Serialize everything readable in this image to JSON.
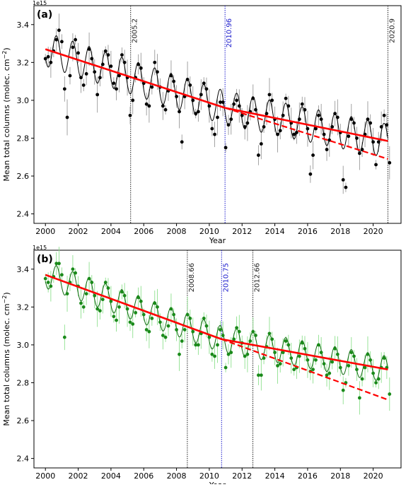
{
  "chart_data": [
    {
      "type": "scatter",
      "panel_label": "(a)",
      "exponent_label": "1e15",
      "xlabel": "Year",
      "ylabel": "Mean total columns (molec. cm",
      "ylabel_sup": "−2",
      "ylabel_close": ")",
      "xlim": [
        1999.3,
        2021.7
      ],
      "ylim": [
        2.35,
        3.5
      ],
      "xticks": [
        2000,
        2002,
        2004,
        2006,
        2008,
        2010,
        2012,
        2014,
        2016,
        2018,
        2020
      ],
      "yticks": [
        2.4,
        2.6,
        2.8,
        3.0,
        3.2,
        3.4
      ],
      "ytick_labels": [
        "2.4",
        "2.6",
        "2.8",
        "3.0",
        "3.2",
        "3.4"
      ],
      "colors": {
        "points": "#000000",
        "errorbars": "#999999",
        "fit": "#000000",
        "trend": "#ff0000",
        "marker_grey": "#222222",
        "marker_blue": "#1a1acc"
      },
      "vlines": [
        {
          "x": 2005.2,
          "label": "2005.2",
          "color": "#222222"
        },
        {
          "x": 2010.96,
          "label": "2010.96",
          "color": "#1a1acc"
        },
        {
          "x": 2020.9,
          "label": "2020.9",
          "color": "#222222"
        }
      ],
      "trend": {
        "start": [
          2000.0,
          3.27
        ],
        "break": [
          2010.96,
          2.96
        ],
        "end": [
          2020.9,
          2.785
        ],
        "extended_end": [
          2020.9,
          2.69
        ]
      },
      "seasonal_amplitude": 0.09,
      "points": [
        {
          "x": 2000.0,
          "y": 3.22
        },
        {
          "x": 2000.17,
          "y": 3.23
        },
        {
          "x": 2000.33,
          "y": 3.2
        },
        {
          "x": 2000.5,
          "y": 3.26
        },
        {
          "x": 2000.67,
          "y": 3.32
        },
        {
          "x": 2000.83,
          "y": 3.37
        },
        {
          "x": 2001.0,
          "y": 3.31
        },
        {
          "x": 2001.17,
          "y": 3.06
        },
        {
          "x": 2001.33,
          "y": 2.91
        },
        {
          "x": 2001.5,
          "y": 3.13
        },
        {
          "x": 2001.67,
          "y": 3.28
        },
        {
          "x": 2001.83,
          "y": 3.32
        },
        {
          "x": 2002.0,
          "y": 3.25
        },
        {
          "x": 2002.17,
          "y": 3.12
        },
        {
          "x": 2002.33,
          "y": 3.08
        },
        {
          "x": 2002.5,
          "y": 3.14
        },
        {
          "x": 2002.67,
          "y": 3.27
        },
        {
          "x": 2002.83,
          "y": 3.22
        },
        {
          "x": 2003.0,
          "y": 3.15
        },
        {
          "x": 2003.17,
          "y": 3.03
        },
        {
          "x": 2003.33,
          "y": 3.12
        },
        {
          "x": 2003.5,
          "y": 3.19
        },
        {
          "x": 2003.67,
          "y": 3.26
        },
        {
          "x": 2003.83,
          "y": 3.24
        },
        {
          "x": 2004.0,
          "y": 3.18
        },
        {
          "x": 2004.17,
          "y": 3.09
        },
        {
          "x": 2004.33,
          "y": 3.06
        },
        {
          "x": 2004.5,
          "y": 3.13
        },
        {
          "x": 2004.67,
          "y": 3.24
        },
        {
          "x": 2004.83,
          "y": 3.2
        },
        {
          "x": 2005.0,
          "y": 3.12
        },
        {
          "x": 2005.17,
          "y": 2.92
        },
        {
          "x": 2005.33,
          "y": 3.0
        },
        {
          "x": 2005.5,
          "y": 3.12
        },
        {
          "x": 2005.67,
          "y": 3.19
        },
        {
          "x": 2005.83,
          "y": 3.17
        },
        {
          "x": 2006.0,
          "y": 3.09
        },
        {
          "x": 2006.17,
          "y": 2.98
        },
        {
          "x": 2006.33,
          "y": 2.97
        },
        {
          "x": 2006.5,
          "y": 3.07
        },
        {
          "x": 2006.67,
          "y": 3.2
        },
        {
          "x": 2006.83,
          "y": 3.15
        },
        {
          "x": 2007.0,
          "y": 3.07
        },
        {
          "x": 2007.17,
          "y": 2.97
        },
        {
          "x": 2007.33,
          "y": 2.95
        },
        {
          "x": 2007.5,
          "y": 3.05
        },
        {
          "x": 2007.67,
          "y": 3.13
        },
        {
          "x": 2007.83,
          "y": 3.1
        },
        {
          "x": 2008.0,
          "y": 3.02
        },
        {
          "x": 2008.17,
          "y": 2.94
        },
        {
          "x": 2008.33,
          "y": 2.78
        },
        {
          "x": 2008.5,
          "y": 3.02
        },
        {
          "x": 2008.67,
          "y": 3.11
        },
        {
          "x": 2008.83,
          "y": 3.08
        },
        {
          "x": 2009.0,
          "y": 3.0
        },
        {
          "x": 2009.17,
          "y": 2.93
        },
        {
          "x": 2009.33,
          "y": 2.94
        },
        {
          "x": 2009.5,
          "y": 3.03
        },
        {
          "x": 2009.67,
          "y": 3.09
        },
        {
          "x": 2009.83,
          "y": 3.06
        },
        {
          "x": 2010.0,
          "y": 2.97
        },
        {
          "x": 2010.17,
          "y": 2.85
        },
        {
          "x": 2010.33,
          "y": 2.82
        },
        {
          "x": 2010.5,
          "y": 2.91
        },
        {
          "x": 2010.67,
          "y": 2.99
        },
        {
          "x": 2010.83,
          "y": 2.99
        },
        {
          "x": 2011.0,
          "y": 2.75
        },
        {
          "x": 2011.17,
          "y": 2.87
        },
        {
          "x": 2011.33,
          "y": 2.9
        },
        {
          "x": 2011.5,
          "y": 2.98
        },
        {
          "x": 2011.67,
          "y": 3.0
        },
        {
          "x": 2011.83,
          "y": 2.97
        },
        {
          "x": 2012.0,
          "y": 2.92
        },
        {
          "x": 2012.17,
          "y": 2.86
        },
        {
          "x": 2012.33,
          "y": 2.88
        },
        {
          "x": 2012.5,
          "y": 2.94
        },
        {
          "x": 2012.67,
          "y": 3.01
        },
        {
          "x": 2012.83,
          "y": 2.95
        },
        {
          "x": 2013.0,
          "y": 2.71
        },
        {
          "x": 2013.17,
          "y": 2.77
        },
        {
          "x": 2013.33,
          "y": 2.86
        },
        {
          "x": 2013.5,
          "y": 2.93
        },
        {
          "x": 2013.67,
          "y": 3.03
        },
        {
          "x": 2013.83,
          "y": 3.0
        },
        {
          "x": 2014.0,
          "y": 2.9
        },
        {
          "x": 2014.17,
          "y": 2.82
        },
        {
          "x": 2014.33,
          "y": 2.84
        },
        {
          "x": 2014.5,
          "y": 2.92
        },
        {
          "x": 2014.67,
          "y": 3.01
        },
        {
          "x": 2014.83,
          "y": 2.97
        },
        {
          "x": 2015.0,
          "y": 2.88
        },
        {
          "x": 2015.17,
          "y": 2.82
        },
        {
          "x": 2015.33,
          "y": 2.83
        },
        {
          "x": 2015.5,
          "y": 2.9
        },
        {
          "x": 2015.67,
          "y": 2.98
        },
        {
          "x": 2015.83,
          "y": 2.95
        },
        {
          "x": 2016.0,
          "y": 2.85
        },
        {
          "x": 2016.17,
          "y": 2.61
        },
        {
          "x": 2016.33,
          "y": 2.71
        },
        {
          "x": 2016.5,
          "y": 2.85
        },
        {
          "x": 2016.67,
          "y": 2.92
        },
        {
          "x": 2016.83,
          "y": 2.9
        },
        {
          "x": 2017.0,
          "y": 2.82
        },
        {
          "x": 2017.17,
          "y": 2.74
        },
        {
          "x": 2017.33,
          "y": 2.79
        },
        {
          "x": 2017.5,
          "y": 2.86
        },
        {
          "x": 2017.67,
          "y": 2.93
        },
        {
          "x": 2017.83,
          "y": 2.91
        },
        {
          "x": 2018.0,
          "y": 2.83
        },
        {
          "x": 2018.17,
          "y": 2.58
        },
        {
          "x": 2018.33,
          "y": 2.54
        },
        {
          "x": 2018.5,
          "y": 2.81
        },
        {
          "x": 2018.67,
          "y": 2.9
        },
        {
          "x": 2018.83,
          "y": 2.88
        },
        {
          "x": 2019.0,
          "y": 2.8
        },
        {
          "x": 2019.17,
          "y": 2.72
        },
        {
          "x": 2019.33,
          "y": 2.74
        },
        {
          "x": 2019.5,
          "y": 2.82
        },
        {
          "x": 2019.67,
          "y": 2.9
        },
        {
          "x": 2019.83,
          "y": 2.88
        },
        {
          "x": 2020.0,
          "y": 2.78
        },
        {
          "x": 2020.17,
          "y": 2.66
        },
        {
          "x": 2020.33,
          "y": 2.78
        },
        {
          "x": 2020.5,
          "y": 2.86
        },
        {
          "x": 2020.67,
          "y": 2.92
        },
        {
          "x": 2020.83,
          "y": 2.87
        },
        {
          "x": 2021.0,
          "y": 2.67
        }
      ]
    },
    {
      "type": "scatter",
      "panel_label": "(b)",
      "exponent_label": "1e15",
      "xlabel": "Year",
      "ylabel": "Mean total columns (molec. cm",
      "ylabel_sup": "−2",
      "ylabel_close": ")",
      "xlim": [
        1999.3,
        2021.7
      ],
      "ylim": [
        2.35,
        3.5
      ],
      "xticks": [
        2000,
        2002,
        2004,
        2006,
        2008,
        2010,
        2012,
        2014,
        2016,
        2018,
        2020
      ],
      "yticks": [
        2.4,
        2.6,
        2.8,
        3.0,
        3.2,
        3.4
      ],
      "ytick_labels": [
        "2.4",
        "2.6",
        "2.8",
        "3.0",
        "3.2",
        "3.4"
      ],
      "colors": {
        "points": "#1a8a1a",
        "errorbars": "#8ee08e",
        "fit": "#0e6a0e",
        "trend": "#ff0000",
        "marker_grey": "#222222",
        "marker_blue": "#1a1acc"
      },
      "vlines": [
        {
          "x": 2008.66,
          "label": "2008.66",
          "color": "#222222"
        },
        {
          "x": 2010.75,
          "label": "2010.75",
          "color": "#1a1acc"
        },
        {
          "x": 2012.66,
          "label": "2012.66",
          "color": "#222222"
        }
      ],
      "trend": {
        "start": [
          2000.0,
          3.37
        ],
        "break": [
          2010.75,
          3.03
        ],
        "end": [
          2020.9,
          2.87
        ],
        "extended_end": [
          2020.9,
          2.71
        ]
      },
      "seasonal_amplitude": 0.07,
      "points": [
        {
          "x": 2000.0,
          "y": 3.35
        },
        {
          "x": 2000.17,
          "y": 3.33
        },
        {
          "x": 2000.33,
          "y": 3.31
        },
        {
          "x": 2000.5,
          "y": 3.36
        },
        {
          "x": 2000.67,
          "y": 3.43
        },
        {
          "x": 2000.83,
          "y": 3.43
        },
        {
          "x": 2001.0,
          "y": 3.37
        },
        {
          "x": 2001.17,
          "y": 3.04
        },
        {
          "x": 2001.33,
          "y": 3.27
        },
        {
          "x": 2001.5,
          "y": 3.33
        },
        {
          "x": 2001.67,
          "y": 3.4
        },
        {
          "x": 2001.83,
          "y": 3.38
        },
        {
          "x": 2002.0,
          "y": 3.31
        },
        {
          "x": 2002.17,
          "y": 3.22
        },
        {
          "x": 2002.33,
          "y": 3.2
        },
        {
          "x": 2002.5,
          "y": 3.27
        },
        {
          "x": 2002.67,
          "y": 3.35
        },
        {
          "x": 2002.83,
          "y": 3.33
        },
        {
          "x": 2003.0,
          "y": 3.26
        },
        {
          "x": 2003.17,
          "y": 3.19
        },
        {
          "x": 2003.33,
          "y": 3.18
        },
        {
          "x": 2003.5,
          "y": 3.24
        },
        {
          "x": 2003.67,
          "y": 3.33
        },
        {
          "x": 2003.83,
          "y": 3.3
        },
        {
          "x": 2004.0,
          "y": 3.23
        },
        {
          "x": 2004.17,
          "y": 3.15
        },
        {
          "x": 2004.33,
          "y": 3.13
        },
        {
          "x": 2004.5,
          "y": 3.2
        },
        {
          "x": 2004.67,
          "y": 3.28
        },
        {
          "x": 2004.83,
          "y": 3.26
        },
        {
          "x": 2005.0,
          "y": 3.19
        },
        {
          "x": 2005.17,
          "y": 3.12
        },
        {
          "x": 2005.33,
          "y": 3.11
        },
        {
          "x": 2005.5,
          "y": 3.17
        },
        {
          "x": 2005.67,
          "y": 3.25
        },
        {
          "x": 2005.83,
          "y": 3.23
        },
        {
          "x": 2006.0,
          "y": 3.16
        },
        {
          "x": 2006.17,
          "y": 3.08
        },
        {
          "x": 2006.33,
          "y": 3.07
        },
        {
          "x": 2006.5,
          "y": 3.14
        },
        {
          "x": 2006.67,
          "y": 3.22
        },
        {
          "x": 2006.83,
          "y": 3.2
        },
        {
          "x": 2007.0,
          "y": 3.12
        },
        {
          "x": 2007.17,
          "y": 3.05
        },
        {
          "x": 2007.33,
          "y": 3.04
        },
        {
          "x": 2007.5,
          "y": 3.1
        },
        {
          "x": 2007.67,
          "y": 3.19
        },
        {
          "x": 2007.83,
          "y": 3.16
        },
        {
          "x": 2008.0,
          "y": 3.08
        },
        {
          "x": 2008.17,
          "y": 2.95
        },
        {
          "x": 2008.33,
          "y": 3.02
        },
        {
          "x": 2008.5,
          "y": 3.08
        },
        {
          "x": 2008.67,
          "y": 3.16
        },
        {
          "x": 2008.83,
          "y": 3.14
        },
        {
          "x": 2009.0,
          "y": 3.07
        },
        {
          "x": 2009.17,
          "y": 3.0
        },
        {
          "x": 2009.33,
          "y": 3.0
        },
        {
          "x": 2009.5,
          "y": 3.06
        },
        {
          "x": 2009.67,
          "y": 3.14
        },
        {
          "x": 2009.83,
          "y": 3.1
        },
        {
          "x": 2010.0,
          "y": 3.04
        },
        {
          "x": 2010.17,
          "y": 2.95
        },
        {
          "x": 2010.33,
          "y": 2.94
        },
        {
          "x": 2010.5,
          "y": 3.0
        },
        {
          "x": 2010.67,
          "y": 3.08
        },
        {
          "x": 2010.83,
          "y": 3.05
        },
        {
          "x": 2011.0,
          "y": 2.88
        },
        {
          "x": 2011.17,
          "y": 2.95
        },
        {
          "x": 2011.33,
          "y": 2.96
        },
        {
          "x": 2011.5,
          "y": 3.03
        },
        {
          "x": 2011.67,
          "y": 3.09
        },
        {
          "x": 2011.83,
          "y": 3.07
        },
        {
          "x": 2012.0,
          "y": 3.01
        },
        {
          "x": 2012.17,
          "y": 2.94
        },
        {
          "x": 2012.33,
          "y": 2.95
        },
        {
          "x": 2012.5,
          "y": 3.02
        },
        {
          "x": 2012.67,
          "y": 3.07
        },
        {
          "x": 2012.83,
          "y": 3.05
        },
        {
          "x": 2013.0,
          "y": 2.84
        },
        {
          "x": 2013.17,
          "y": 2.84
        },
        {
          "x": 2013.33,
          "y": 2.93
        },
        {
          "x": 2013.5,
          "y": 2.99
        },
        {
          "x": 2013.67,
          "y": 3.06
        },
        {
          "x": 2013.83,
          "y": 3.03
        },
        {
          "x": 2014.0,
          "y": 2.96
        },
        {
          "x": 2014.17,
          "y": 2.89
        },
        {
          "x": 2014.33,
          "y": 2.9
        },
        {
          "x": 2014.5,
          "y": 2.96
        },
        {
          "x": 2014.67,
          "y": 3.02
        },
        {
          "x": 2014.83,
          "y": 3.0
        },
        {
          "x": 2015.0,
          "y": 2.93
        },
        {
          "x": 2015.17,
          "y": 2.87
        },
        {
          "x": 2015.33,
          "y": 2.88
        },
        {
          "x": 2015.5,
          "y": 2.94
        },
        {
          "x": 2015.67,
          "y": 3.01
        },
        {
          "x": 2015.83,
          "y": 2.98
        },
        {
          "x": 2016.0,
          "y": 2.92
        },
        {
          "x": 2016.17,
          "y": 2.86
        },
        {
          "x": 2016.33,
          "y": 2.87
        },
        {
          "x": 2016.5,
          "y": 2.92
        },
        {
          "x": 2016.67,
          "y": 3.0
        },
        {
          "x": 2016.83,
          "y": 2.96
        },
        {
          "x": 2017.0,
          "y": 2.9
        },
        {
          "x": 2017.17,
          "y": 2.84
        },
        {
          "x": 2017.33,
          "y": 2.85
        },
        {
          "x": 2017.5,
          "y": 2.91
        },
        {
          "x": 2017.67,
          "y": 2.98
        },
        {
          "x": 2017.83,
          "y": 2.95
        },
        {
          "x": 2018.0,
          "y": 2.88
        },
        {
          "x": 2018.17,
          "y": 2.76
        },
        {
          "x": 2018.33,
          "y": 2.8
        },
        {
          "x": 2018.5,
          "y": 2.89
        },
        {
          "x": 2018.67,
          "y": 2.96
        },
        {
          "x": 2018.83,
          "y": 2.94
        },
        {
          "x": 2019.0,
          "y": 2.87
        },
        {
          "x": 2019.17,
          "y": 2.72
        },
        {
          "x": 2019.33,
          "y": 2.82
        },
        {
          "x": 2019.5,
          "y": 2.88
        },
        {
          "x": 2019.67,
          "y": 2.95
        },
        {
          "x": 2019.83,
          "y": 2.92
        },
        {
          "x": 2020.0,
          "y": 2.85
        },
        {
          "x": 2020.17,
          "y": 2.8
        },
        {
          "x": 2020.33,
          "y": 2.82
        },
        {
          "x": 2020.5,
          "y": 2.88
        },
        {
          "x": 2020.67,
          "y": 2.93
        },
        {
          "x": 2020.83,
          "y": 2.88
        },
        {
          "x": 2021.0,
          "y": 2.74
        }
      ]
    }
  ]
}
